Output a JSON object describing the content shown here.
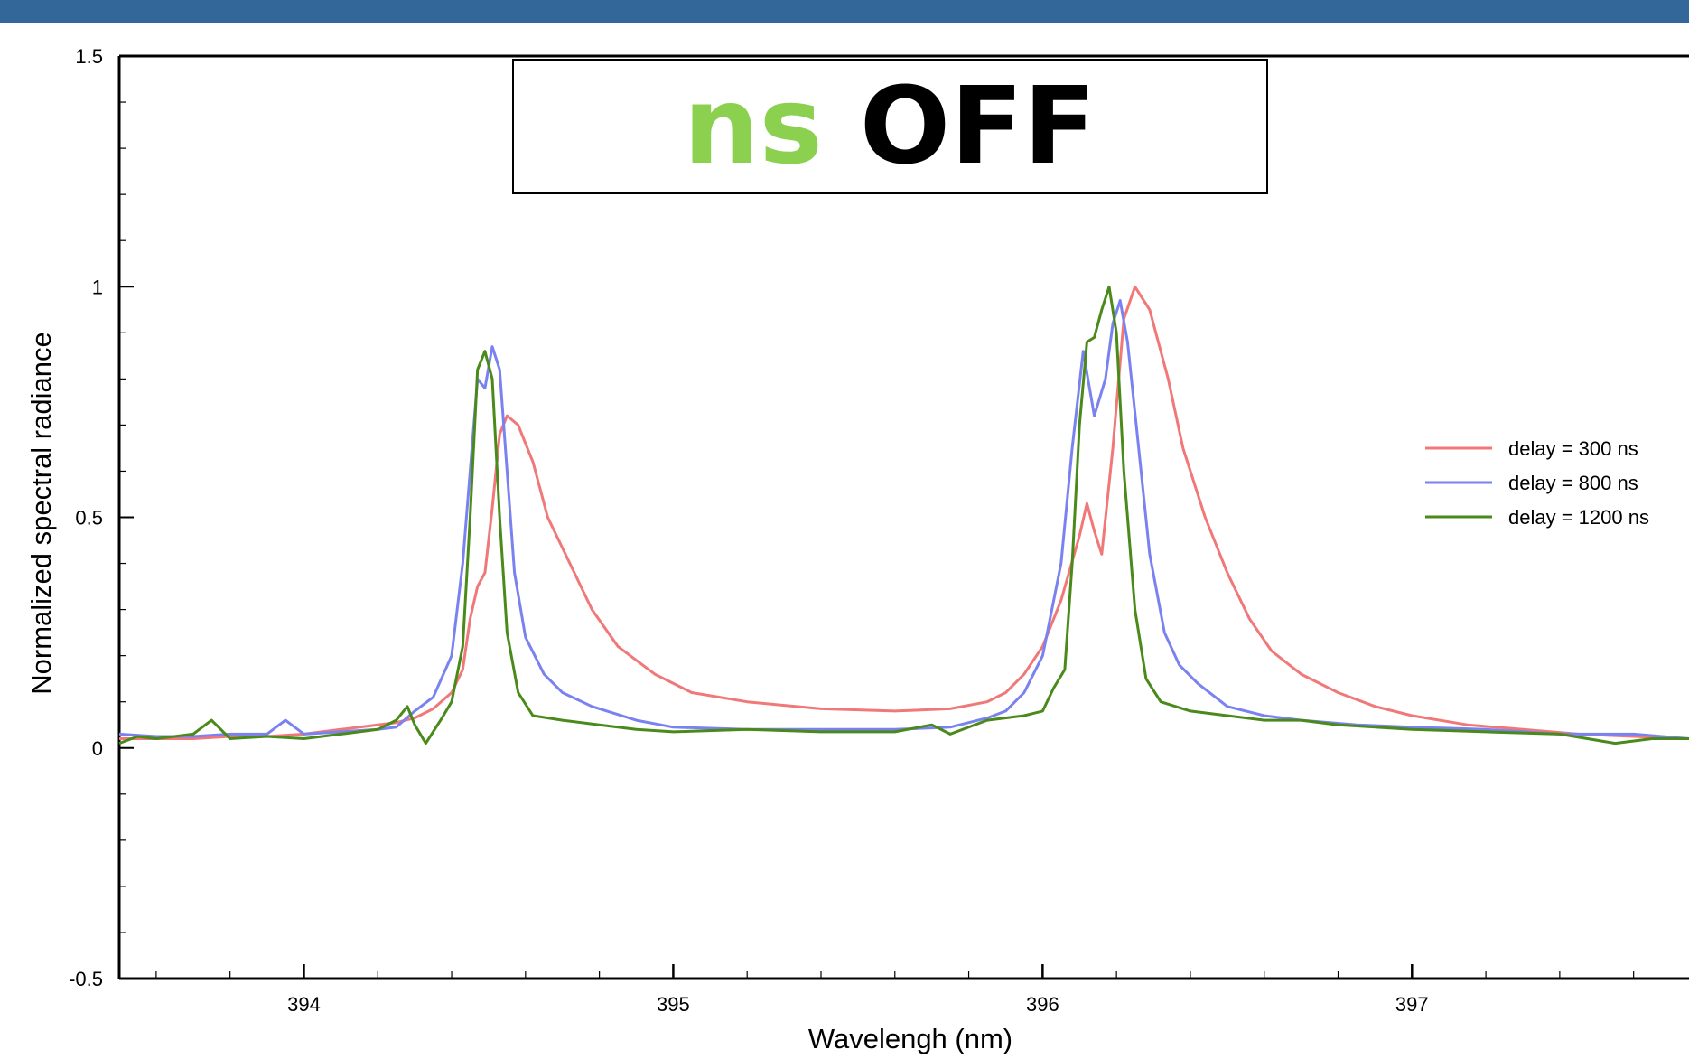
{
  "header": {
    "bar_color": "#336699"
  },
  "annotation": {
    "word1": "ns",
    "word1_color": "#8cd050",
    "word2": "OFF",
    "word2_color": "#000000"
  },
  "chart_data": {
    "type": "line",
    "title": "",
    "xlabel": "Wavelengh (nm)",
    "ylabel": "Normalized spectral radiance",
    "xlim": [
      393.5,
      397.75
    ],
    "ylim": [
      -0.5,
      1.5
    ],
    "xticks": [
      {
        "v": 394,
        "label": "394"
      },
      {
        "v": 395,
        "label": "395"
      },
      {
        "v": 396,
        "label": "396"
      },
      {
        "v": 397,
        "label": "397"
      }
    ],
    "yticks": [
      {
        "v": -0.5,
        "label": "-0.5"
      },
      {
        "v": 0,
        "label": "0"
      },
      {
        "v": 0.5,
        "label": "0.5"
      },
      {
        "v": 1,
        "label": "1"
      },
      {
        "v": 1.5,
        "label": "1.5"
      }
    ],
    "grid": false,
    "legend_position": "right",
    "series": [
      {
        "name": "delay = 300 ns",
        "color": "#f07878",
        "points": [
          [
            393.5,
            0.02
          ],
          [
            393.6,
            0.02
          ],
          [
            393.7,
            0.02
          ],
          [
            393.8,
            0.025
          ],
          [
            393.9,
            0.025
          ],
          [
            394.0,
            0.03
          ],
          [
            394.1,
            0.04
          ],
          [
            394.2,
            0.05
          ],
          [
            394.25,
            0.055
          ],
          [
            394.3,
            0.065
          ],
          [
            394.35,
            0.085
          ],
          [
            394.4,
            0.12
          ],
          [
            394.43,
            0.17
          ],
          [
            394.45,
            0.28
          ],
          [
            394.47,
            0.35
          ],
          [
            394.49,
            0.38
          ],
          [
            394.51,
            0.52
          ],
          [
            394.53,
            0.68
          ],
          [
            394.55,
            0.72
          ],
          [
            394.58,
            0.7
          ],
          [
            394.62,
            0.62
          ],
          [
            394.66,
            0.5
          ],
          [
            394.72,
            0.4
          ],
          [
            394.78,
            0.3
          ],
          [
            394.85,
            0.22
          ],
          [
            394.95,
            0.16
          ],
          [
            395.05,
            0.12
          ],
          [
            395.2,
            0.1
          ],
          [
            395.4,
            0.085
          ],
          [
            395.6,
            0.08
          ],
          [
            395.75,
            0.085
          ],
          [
            395.85,
            0.1
          ],
          [
            395.9,
            0.12
          ],
          [
            395.95,
            0.16
          ],
          [
            396.0,
            0.22
          ],
          [
            396.05,
            0.32
          ],
          [
            396.1,
            0.46
          ],
          [
            396.12,
            0.53
          ],
          [
            396.14,
            0.47
          ],
          [
            396.16,
            0.42
          ],
          [
            396.19,
            0.65
          ],
          [
            396.22,
            0.93
          ],
          [
            396.25,
            1.0
          ],
          [
            396.29,
            0.95
          ],
          [
            396.34,
            0.8
          ],
          [
            396.38,
            0.65
          ],
          [
            396.44,
            0.5
          ],
          [
            396.5,
            0.38
          ],
          [
            396.56,
            0.28
          ],
          [
            396.62,
            0.21
          ],
          [
            396.7,
            0.16
          ],
          [
            396.8,
            0.12
          ],
          [
            396.9,
            0.09
          ],
          [
            397.0,
            0.07
          ],
          [
            397.15,
            0.05
          ],
          [
            397.3,
            0.04
          ],
          [
            397.45,
            0.03
          ],
          [
            397.6,
            0.025
          ],
          [
            397.75,
            0.02
          ]
        ]
      },
      {
        "name": "delay = 800 ns",
        "color": "#7a82f0",
        "points": [
          [
            393.5,
            0.03
          ],
          [
            393.6,
            0.025
          ],
          [
            393.7,
            0.025
          ],
          [
            393.8,
            0.03
          ],
          [
            393.9,
            0.03
          ],
          [
            393.95,
            0.06
          ],
          [
            394.0,
            0.03
          ],
          [
            394.1,
            0.035
          ],
          [
            394.2,
            0.04
          ],
          [
            394.25,
            0.045
          ],
          [
            394.3,
            0.08
          ],
          [
            394.35,
            0.11
          ],
          [
            394.4,
            0.2
          ],
          [
            394.43,
            0.4
          ],
          [
            394.45,
            0.6
          ],
          [
            394.47,
            0.8
          ],
          [
            394.49,
            0.78
          ],
          [
            394.51,
            0.87
          ],
          [
            394.53,
            0.82
          ],
          [
            394.55,
            0.6
          ],
          [
            394.57,
            0.38
          ],
          [
            394.6,
            0.24
          ],
          [
            394.65,
            0.16
          ],
          [
            394.7,
            0.12
          ],
          [
            394.78,
            0.09
          ],
          [
            394.9,
            0.06
          ],
          [
            395.0,
            0.045
          ],
          [
            395.2,
            0.04
          ],
          [
            395.4,
            0.04
          ],
          [
            395.6,
            0.04
          ],
          [
            395.75,
            0.045
          ],
          [
            395.85,
            0.065
          ],
          [
            395.9,
            0.08
          ],
          [
            395.95,
            0.12
          ],
          [
            396.0,
            0.2
          ],
          [
            396.05,
            0.4
          ],
          [
            396.08,
            0.65
          ],
          [
            396.11,
            0.86
          ],
          [
            396.14,
            0.72
          ],
          [
            396.17,
            0.8
          ],
          [
            396.19,
            0.92
          ],
          [
            396.21,
            0.97
          ],
          [
            396.23,
            0.88
          ],
          [
            396.26,
            0.65
          ],
          [
            396.29,
            0.42
          ],
          [
            396.33,
            0.25
          ],
          [
            396.37,
            0.18
          ],
          [
            396.42,
            0.14
          ],
          [
            396.5,
            0.09
          ],
          [
            396.6,
            0.07
          ],
          [
            396.7,
            0.06
          ],
          [
            396.85,
            0.05
          ],
          [
            397.0,
            0.045
          ],
          [
            397.2,
            0.04
          ],
          [
            397.4,
            0.03
          ],
          [
            397.6,
            0.03
          ],
          [
            397.75,
            0.02
          ]
        ]
      },
      {
        "name": "delay = 1200 ns",
        "color": "#4a8a1a",
        "points": [
          [
            393.5,
            0.01
          ],
          [
            393.55,
            0.025
          ],
          [
            393.6,
            0.02
          ],
          [
            393.7,
            0.03
          ],
          [
            393.75,
            0.06
          ],
          [
            393.8,
            0.02
          ],
          [
            393.9,
            0.025
          ],
          [
            394.0,
            0.02
          ],
          [
            394.1,
            0.03
          ],
          [
            394.2,
            0.04
          ],
          [
            394.25,
            0.06
          ],
          [
            394.28,
            0.09
          ],
          [
            394.3,
            0.05
          ],
          [
            394.33,
            0.01
          ],
          [
            394.37,
            0.06
          ],
          [
            394.4,
            0.1
          ],
          [
            394.43,
            0.22
          ],
          [
            394.45,
            0.5
          ],
          [
            394.47,
            0.82
          ],
          [
            394.49,
            0.86
          ],
          [
            394.51,
            0.8
          ],
          [
            394.53,
            0.5
          ],
          [
            394.55,
            0.25
          ],
          [
            394.58,
            0.12
          ],
          [
            394.62,
            0.07
          ],
          [
            394.7,
            0.06
          ],
          [
            394.8,
            0.05
          ],
          [
            394.9,
            0.04
          ],
          [
            395.0,
            0.035
          ],
          [
            395.2,
            0.04
          ],
          [
            395.4,
            0.035
          ],
          [
            395.6,
            0.035
          ],
          [
            395.7,
            0.05
          ],
          [
            395.75,
            0.03
          ],
          [
            395.85,
            0.06
          ],
          [
            395.95,
            0.07
          ],
          [
            396.0,
            0.08
          ],
          [
            396.03,
            0.13
          ],
          [
            396.06,
            0.17
          ],
          [
            396.08,
            0.4
          ],
          [
            396.1,
            0.7
          ],
          [
            396.12,
            0.88
          ],
          [
            396.14,
            0.89
          ],
          [
            396.16,
            0.95
          ],
          [
            396.18,
            1.0
          ],
          [
            396.2,
            0.9
          ],
          [
            396.22,
            0.6
          ],
          [
            396.25,
            0.3
          ],
          [
            396.28,
            0.15
          ],
          [
            396.32,
            0.1
          ],
          [
            396.4,
            0.08
          ],
          [
            396.5,
            0.07
          ],
          [
            396.6,
            0.06
          ],
          [
            396.7,
            0.06
          ],
          [
            396.8,
            0.05
          ],
          [
            397.0,
            0.04
          ],
          [
            397.2,
            0.035
          ],
          [
            397.4,
            0.03
          ],
          [
            397.55,
            0.01
          ],
          [
            397.65,
            0.02
          ],
          [
            397.75,
            0.02
          ]
        ]
      }
    ]
  }
}
